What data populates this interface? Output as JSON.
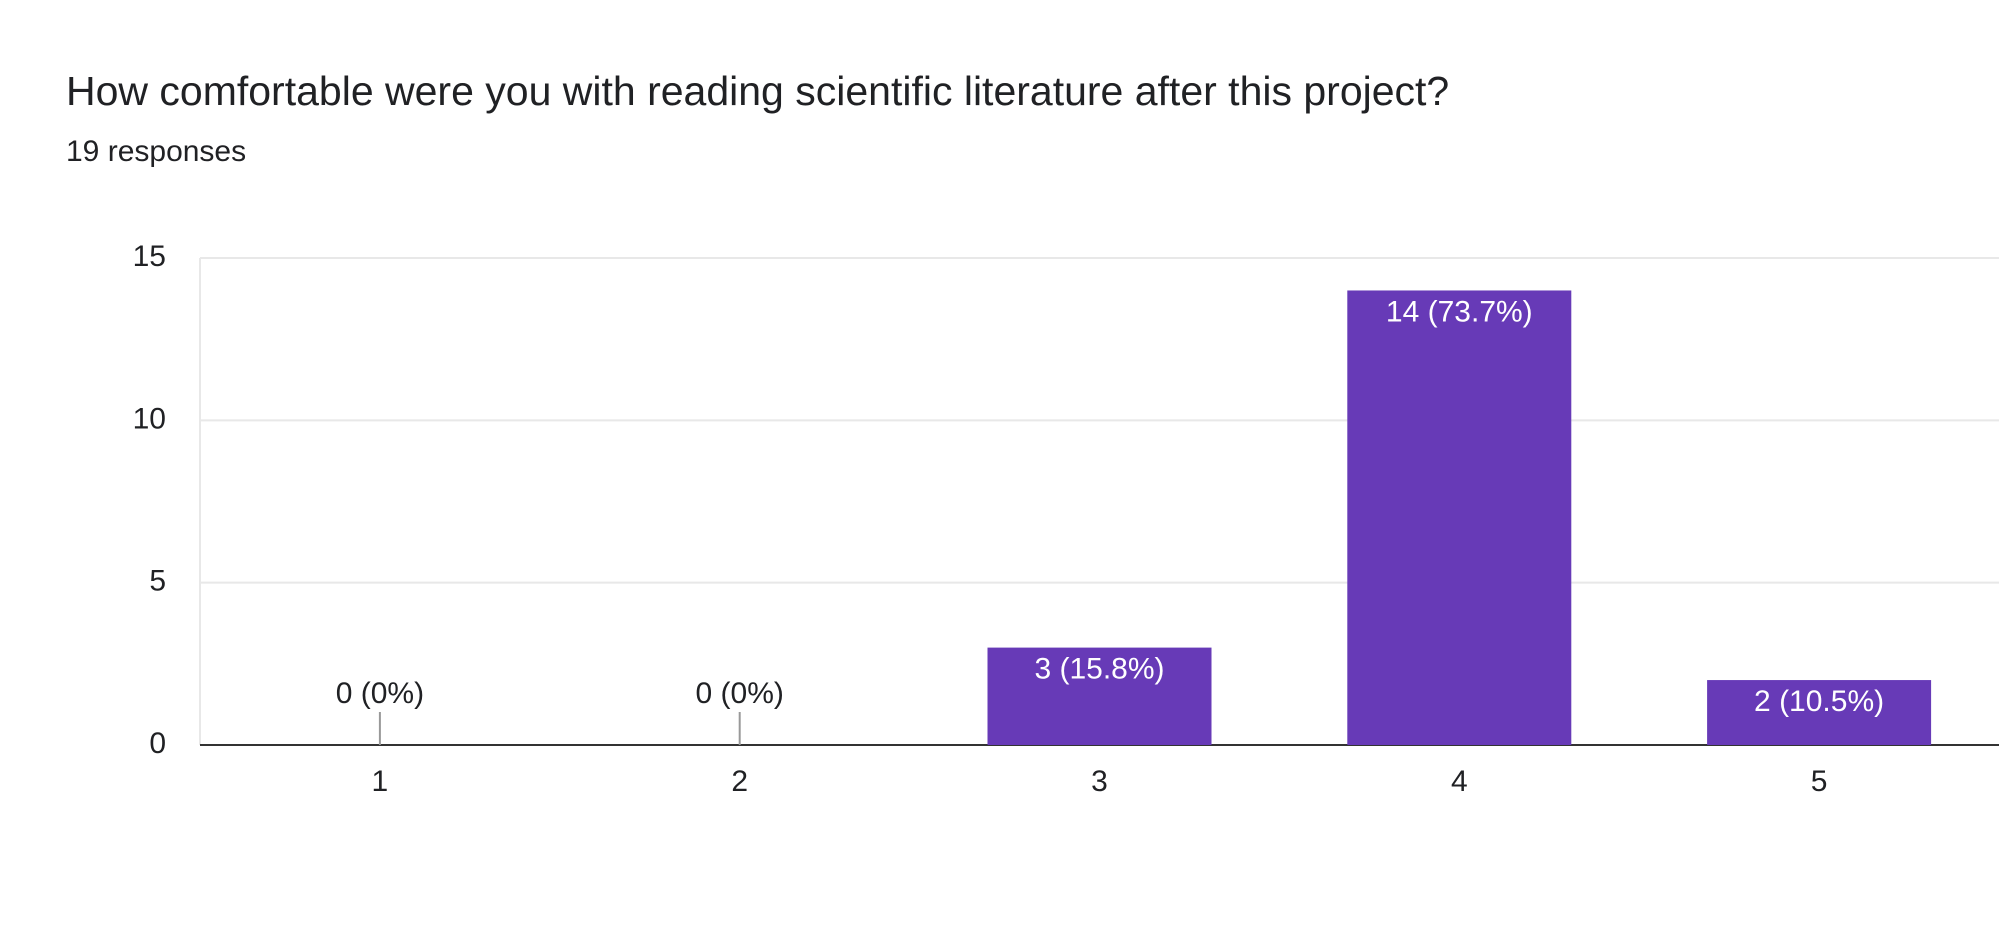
{
  "chart_data": {
    "type": "bar",
    "title": "How comfortable were you with reading scientific literature after this project?",
    "subtitle": "19 responses",
    "categories": [
      "1",
      "2",
      "3",
      "4",
      "5"
    ],
    "values": [
      0,
      0,
      3,
      14,
      2
    ],
    "value_labels": [
      "0 (0%)",
      "0 (0%)",
      "3 (15.8%)",
      "14 (73.7%)",
      "2 (10.5%)"
    ],
    "color": "#673ab7",
    "ylim": [
      0,
      15
    ],
    "yticks": [
      0,
      5,
      10,
      15
    ],
    "grid": true
  }
}
